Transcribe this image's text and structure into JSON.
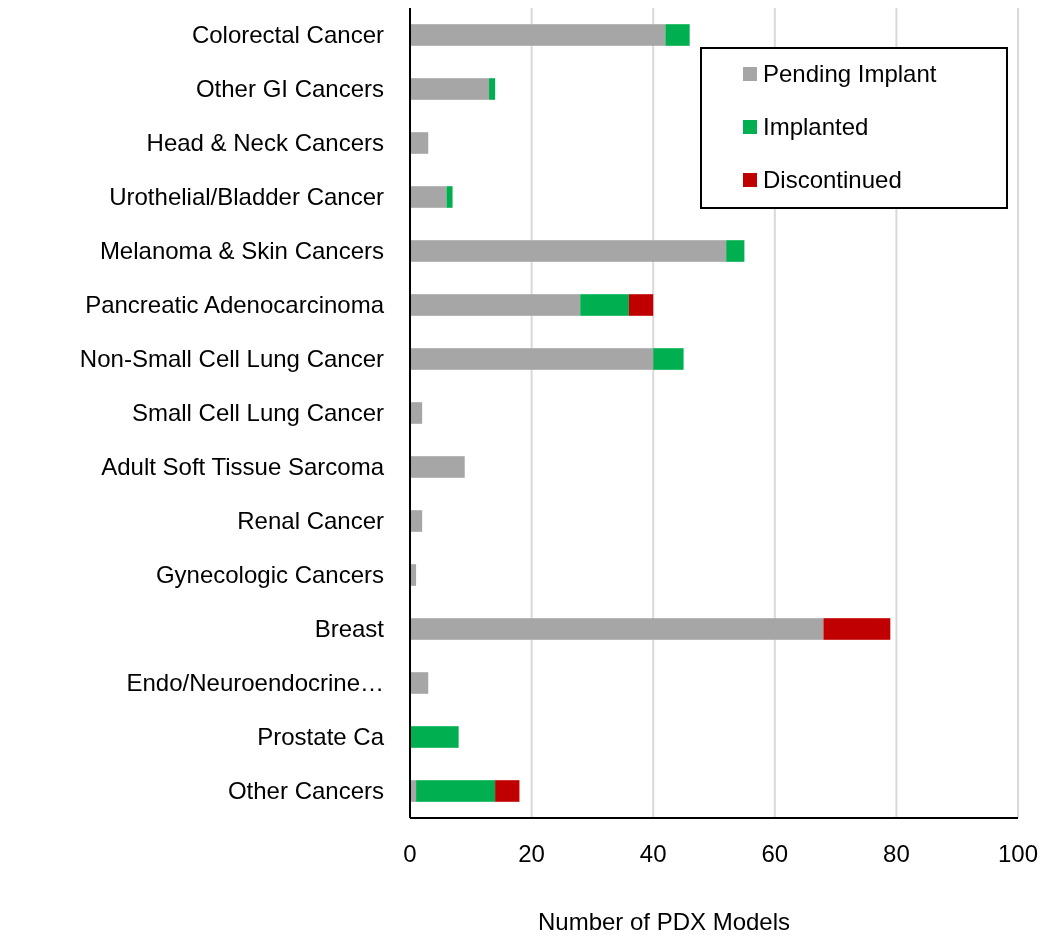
{
  "chart_data": {
    "type": "bar",
    "orientation": "horizontal",
    "stacked": true,
    "xlabel": "Number of PDX Models",
    "categories": [
      "Colorectal Cancer",
      "Other GI Cancers",
      "Head & Neck Cancers",
      "Urothelial/Bladder Cancer",
      "Melanoma & Skin Cancers",
      "Pancreatic Adenocarcinoma",
      "Non-Small Cell Lung Cancer",
      "Small Cell Lung Cancer",
      "Adult Soft Tissue Sarcoma",
      "Renal Cancer",
      "Gynecologic Cancers",
      "Breast",
      "Endo/Neuroendocrine…",
      "Prostate Ca",
      "Other Cancers"
    ],
    "series": [
      {
        "name": "Pending Implant",
        "color": "#a6a6a6",
        "values": [
          42,
          13,
          3,
          6,
          52,
          28,
          40,
          2,
          9,
          2,
          1,
          68,
          3,
          0,
          1
        ]
      },
      {
        "name": "Implanted",
        "color": "#00b050",
        "values": [
          4,
          1,
          0,
          1,
          3,
          8,
          5,
          0,
          0,
          0,
          0,
          0,
          0,
          8,
          13
        ]
      },
      {
        "name": "Discontinued",
        "color": "#c00000",
        "values": [
          0,
          0,
          0,
          0,
          0,
          4,
          0,
          0,
          0,
          0,
          0,
          11,
          0,
          0,
          4
        ]
      }
    ],
    "xlim": [
      0,
      100
    ],
    "xticks": [
      0,
      20,
      40,
      60,
      80,
      100
    ],
    "grid": "x",
    "legend": "top right"
  }
}
